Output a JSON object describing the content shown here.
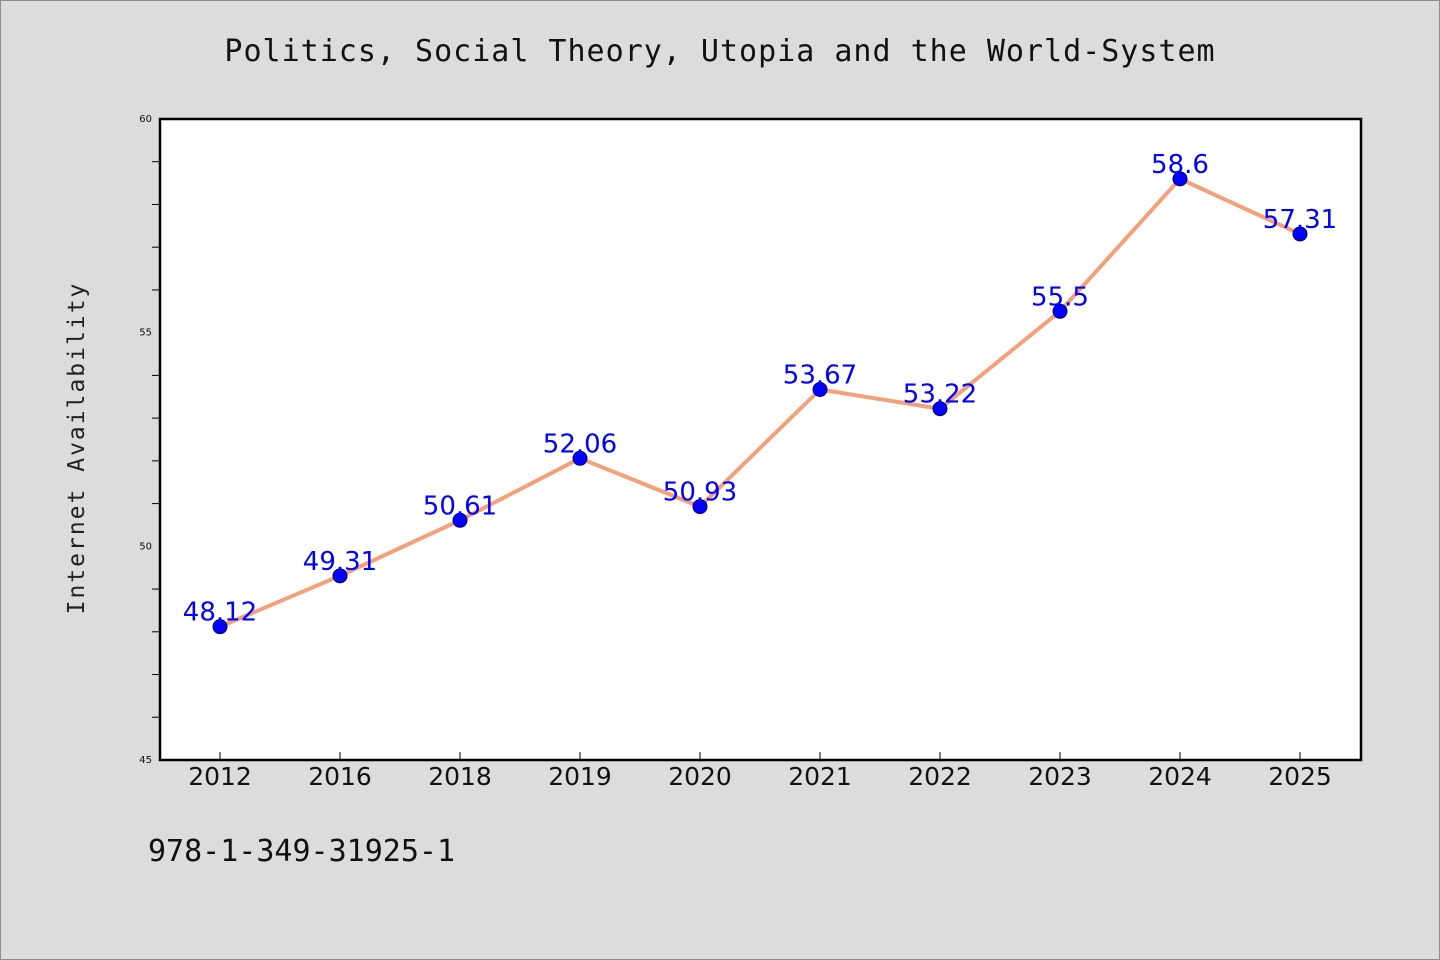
{
  "chart_data": {
    "type": "line",
    "title": "Politics, Social Theory, Utopia and the World-System",
    "xlabel": "",
    "ylabel": "Internet Availability",
    "categories": [
      "2012",
      "2016",
      "2018",
      "2019",
      "2020",
      "2021",
      "2022",
      "2023",
      "2024",
      "2025"
    ],
    "series": [
      {
        "values": [
          48.12,
          49.31,
          50.61,
          52.06,
          50.93,
          53.67,
          53.22,
          55.5,
          58.6,
          57.31
        ],
        "labels": [
          "48.12",
          "49.31",
          "50.61",
          "52.06",
          "50.93",
          "53.67",
          "53.22",
          "55.5",
          "58.6",
          "57.31"
        ],
        "line_color": "#f4a07a",
        "marker_color": "#0000ff"
      }
    ],
    "ylim": [
      45,
      60
    ],
    "yticks": [
      "45",
      "50",
      "55",
      "60"
    ],
    "grid": false,
    "legend": "none"
  },
  "footer": {
    "isbn": "978-1-349-31925-1"
  },
  "colors": {
    "background": "#dcdcdc",
    "plot_area": "#ffffff",
    "line": "#f4a07a",
    "marker": "#0000ff",
    "data_label": "#0000ff"
  }
}
